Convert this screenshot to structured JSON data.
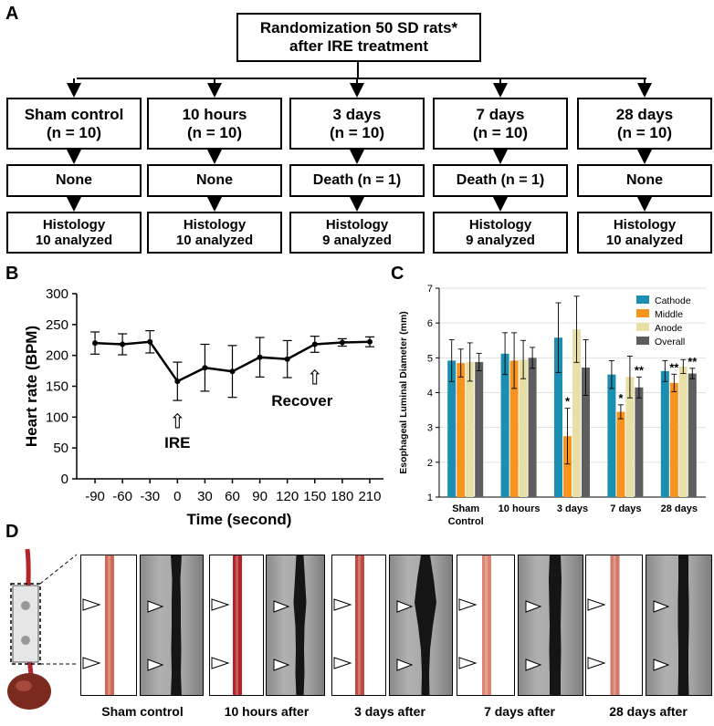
{
  "panels": {
    "a": "A",
    "b": "B",
    "c": "C",
    "d": "D"
  },
  "flowchart": {
    "top": {
      "line1": "Randomization 50 SD rats*",
      "line2": "after IRE treatment"
    },
    "groups": [
      {
        "name": "Sham control",
        "n": "(n = 10)",
        "event": "None",
        "hist_title": "Histology",
        "hist_count": "10 analyzed"
      },
      {
        "name": "10 hours",
        "n": "(n = 10)",
        "event": "None",
        "hist_title": "Histology",
        "hist_count": "10 analyzed"
      },
      {
        "name": "3 days",
        "n": "(n = 10)",
        "event": "Death (n = 1)",
        "hist_title": "Histology",
        "hist_count": "9 analyzed"
      },
      {
        "name": "7 days",
        "n": "(n = 10)",
        "event": "Death (n = 1)",
        "hist_title": "Histology",
        "hist_count": "9 analyzed"
      },
      {
        "name": "28 days",
        "n": "(n = 10)",
        "event": "None",
        "hist_title": "Histology",
        "hist_count": "10 analyzed"
      }
    ]
  },
  "chart_data": [
    {
      "type": "line",
      "title": "",
      "xlabel": "Time (second)",
      "ylabel": "Heart rate (BPM)",
      "x": [
        -90,
        -60,
        -30,
        0,
        30,
        60,
        90,
        120,
        150,
        180,
        210
      ],
      "y": [
        220,
        218,
        222,
        158,
        180,
        174,
        197,
        194,
        218,
        221,
        222
      ],
      "error": [
        18,
        17,
        18,
        31,
        38,
        42,
        32,
        30,
        13,
        6,
        8
      ],
      "xlim": [
        -110,
        225
      ],
      "ylim": [
        0,
        300
      ],
      "yticks": [
        0,
        50,
        100,
        150,
        200,
        250,
        300
      ],
      "annotations": [
        {
          "label": "IRE",
          "x": 0,
          "marker": "⇧"
        },
        {
          "label": "Recover",
          "x": 150,
          "marker": "⇧"
        }
      ]
    },
    {
      "type": "bar",
      "title": "",
      "xlabel": "",
      "ylabel": "Esophageal Luminal Diameter (mm)",
      "categories": [
        "Sham Control",
        "10 hours",
        "3 days",
        "7 days",
        "28 days"
      ],
      "ylim": [
        1,
        7
      ],
      "yticks": [
        1,
        2,
        3,
        4,
        5,
        6,
        7
      ],
      "series": [
        {
          "name": "Cathode",
          "color": "#1b8fb1",
          "values": [
            4.92,
            5.12,
            5.58,
            4.52,
            4.62
          ],
          "error": [
            0.6,
            0.6,
            1.0,
            0.4,
            0.3
          ]
        },
        {
          "name": "Middle",
          "color": "#f7941d",
          "values": [
            4.85,
            4.92,
            2.75,
            3.45,
            4.28
          ],
          "error": [
            0.4,
            0.8,
            0.8,
            0.2,
            0.25
          ]
        },
        {
          "name": "Anode",
          "color": "#e8dfa6",
          "values": [
            4.88,
            4.95,
            5.82,
            4.45,
            4.75
          ],
          "error": [
            0.55,
            0.55,
            0.95,
            0.6,
            0.2
          ]
        },
        {
          "name": "Overall",
          "color": "#5e5e5e",
          "values": [
            4.88,
            5.0,
            4.72,
            4.15,
            4.55
          ],
          "error": [
            0.25,
            0.3,
            0.8,
            0.3,
            0.15
          ]
        }
      ],
      "significance": [
        {
          "category": "3 days",
          "series": "Middle",
          "mark": "*"
        },
        {
          "category": "7 days",
          "series": "Middle",
          "mark": "*"
        },
        {
          "category": "7 days",
          "series": "Overall",
          "mark": "**"
        },
        {
          "category": "28 days",
          "series": "Middle",
          "mark": "**"
        },
        {
          "category": "28 days",
          "series": "Overall",
          "mark": "**"
        }
      ]
    }
  ],
  "photos": {
    "captions": [
      "Sham control",
      "10 hours after",
      "3 days after",
      "7 days after",
      "28 days after"
    ]
  }
}
